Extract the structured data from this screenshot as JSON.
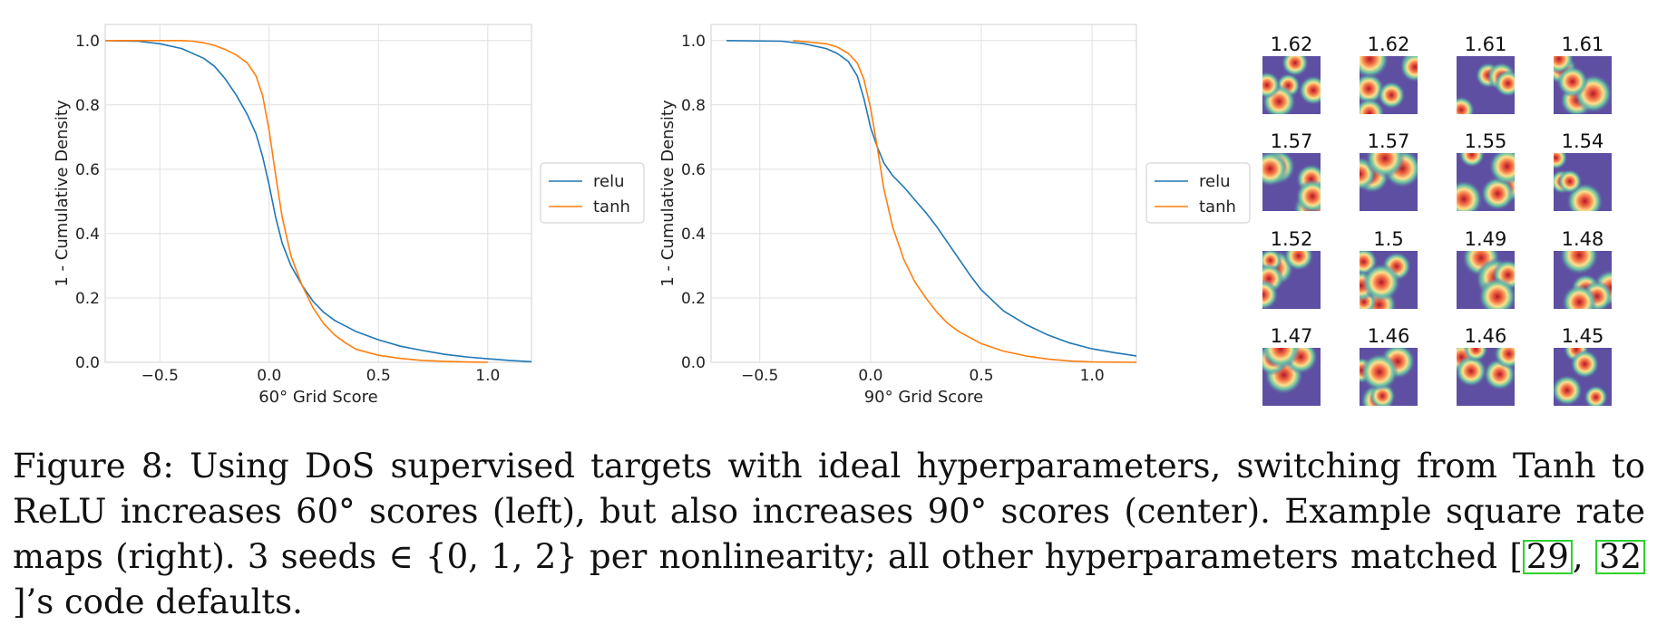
{
  "chart_data": [
    {
      "type": "line",
      "xlabel": "60° Grid Score",
      "ylabel": "1 - Cumulative Density",
      "xlim": [
        -0.75,
        1.2
      ],
      "ylim": [
        0.0,
        1.05
      ],
      "xticks": [
        "−0.5",
        "0.0",
        "0.5",
        "1.0"
      ],
      "xtick_values": [
        -0.5,
        0.0,
        0.5,
        1.0
      ],
      "yticks": [
        "0.0",
        "0.2",
        "0.4",
        "0.6",
        "0.8",
        "1.0"
      ],
      "ytick_values": [
        0.0,
        0.2,
        0.4,
        0.6,
        0.8,
        1.0
      ],
      "grid": true,
      "legend_position": "right-outside",
      "series": [
        {
          "name": "relu",
          "color": "#1f77b4",
          "x": [
            -0.75,
            -0.6,
            -0.5,
            -0.4,
            -0.3,
            -0.25,
            -0.2,
            -0.15,
            -0.1,
            -0.06,
            -0.03,
            0.0,
            0.03,
            0.06,
            0.1,
            0.15,
            0.2,
            0.25,
            0.3,
            0.4,
            0.5,
            0.6,
            0.7,
            0.8,
            0.9,
            1.0,
            1.1,
            1.2
          ],
          "y": [
            1.0,
            0.998,
            0.99,
            0.975,
            0.945,
            0.92,
            0.88,
            0.83,
            0.77,
            0.71,
            0.64,
            0.55,
            0.45,
            0.37,
            0.3,
            0.24,
            0.19,
            0.155,
            0.13,
            0.095,
            0.07,
            0.05,
            0.037,
            0.025,
            0.017,
            0.011,
            0.006,
            0.002
          ]
        },
        {
          "name": "tanh",
          "color": "#ff7f0e",
          "x": [
            -0.75,
            -0.5,
            -0.4,
            -0.35,
            -0.3,
            -0.25,
            -0.2,
            -0.15,
            -0.1,
            -0.06,
            -0.03,
            0.0,
            0.03,
            0.06,
            0.1,
            0.15,
            0.2,
            0.25,
            0.3,
            0.35,
            0.4,
            0.5,
            0.6,
            0.7,
            0.8,
            0.9,
            1.0
          ],
          "y": [
            1.0,
            1.0,
            1.0,
            0.998,
            0.993,
            0.985,
            0.972,
            0.955,
            0.93,
            0.89,
            0.83,
            0.72,
            0.58,
            0.45,
            0.33,
            0.24,
            0.17,
            0.12,
            0.085,
            0.06,
            0.04,
            0.022,
            0.012,
            0.006,
            0.003,
            0.001,
            0.0
          ]
        }
      ]
    },
    {
      "type": "line",
      "xlabel": "90° Grid Score",
      "ylabel": "1 - Cumulative Density",
      "xlim": [
        -0.72,
        1.2
      ],
      "ylim": [
        0.0,
        1.05
      ],
      "xticks": [
        "−0.5",
        "0.0",
        "0.5",
        "1.0"
      ],
      "xtick_values": [
        -0.5,
        0.0,
        0.5,
        1.0
      ],
      "yticks": [
        "0.0",
        "0.2",
        "0.4",
        "0.6",
        "0.8",
        "1.0"
      ],
      "ytick_values": [
        0.0,
        0.2,
        0.4,
        0.6,
        0.8,
        1.0
      ],
      "grid": true,
      "legend_position": "right-outside",
      "series": [
        {
          "name": "relu",
          "color": "#1f77b4",
          "x": [
            -0.65,
            -0.4,
            -0.3,
            -0.2,
            -0.15,
            -0.1,
            -0.06,
            -0.03,
            0.0,
            0.03,
            0.06,
            0.1,
            0.15,
            0.2,
            0.25,
            0.3,
            0.35,
            0.4,
            0.45,
            0.5,
            0.6,
            0.7,
            0.8,
            0.9,
            1.0,
            1.1,
            1.2
          ],
          "y": [
            1.0,
            0.998,
            0.99,
            0.975,
            0.96,
            0.935,
            0.89,
            0.82,
            0.73,
            0.67,
            0.62,
            0.58,
            0.545,
            0.505,
            0.465,
            0.42,
            0.37,
            0.32,
            0.27,
            0.225,
            0.16,
            0.118,
            0.085,
            0.06,
            0.042,
            0.03,
            0.02
          ]
        },
        {
          "name": "tanh",
          "color": "#ff7f0e",
          "x": [
            -0.35,
            -0.2,
            -0.15,
            -0.1,
            -0.06,
            -0.03,
            0.0,
            0.03,
            0.06,
            0.1,
            0.15,
            0.2,
            0.25,
            0.3,
            0.35,
            0.4,
            0.5,
            0.6,
            0.7,
            0.8,
            0.9,
            1.0,
            1.2
          ],
          "y": [
            1.0,
            0.99,
            0.98,
            0.96,
            0.93,
            0.88,
            0.79,
            0.67,
            0.54,
            0.42,
            0.32,
            0.25,
            0.2,
            0.155,
            0.12,
            0.095,
            0.058,
            0.035,
            0.02,
            0.01,
            0.004,
            0.001,
            0.0
          ]
        }
      ]
    }
  ],
  "rate_maps": [
    {
      "score": "1.62"
    },
    {
      "score": "1.62"
    },
    {
      "score": "1.61"
    },
    {
      "score": "1.61"
    },
    {
      "score": "1.57"
    },
    {
      "score": "1.57"
    },
    {
      "score": "1.55"
    },
    {
      "score": "1.54"
    },
    {
      "score": "1.52"
    },
    {
      "score": "1.5"
    },
    {
      "score": "1.49"
    },
    {
      "score": "1.48"
    },
    {
      "score": "1.47"
    },
    {
      "score": "1.46"
    },
    {
      "score": "1.46"
    },
    {
      "score": "1.45"
    }
  ],
  "caption": {
    "text_a": "Figure 8: Using DoS supervised targets with ideal hyperparameters, switching from Tanh to ReLU increases 60° scores (left), but also increases 90° scores (center). Example square rate maps (right). 3 seeds ∈ {0, 1, 2} per nonlinearity; all other hyperparameters matched ",
    "ref1": "29",
    "sep": ", ",
    "ref2": "32",
    "text_b": "’s code defaults."
  }
}
